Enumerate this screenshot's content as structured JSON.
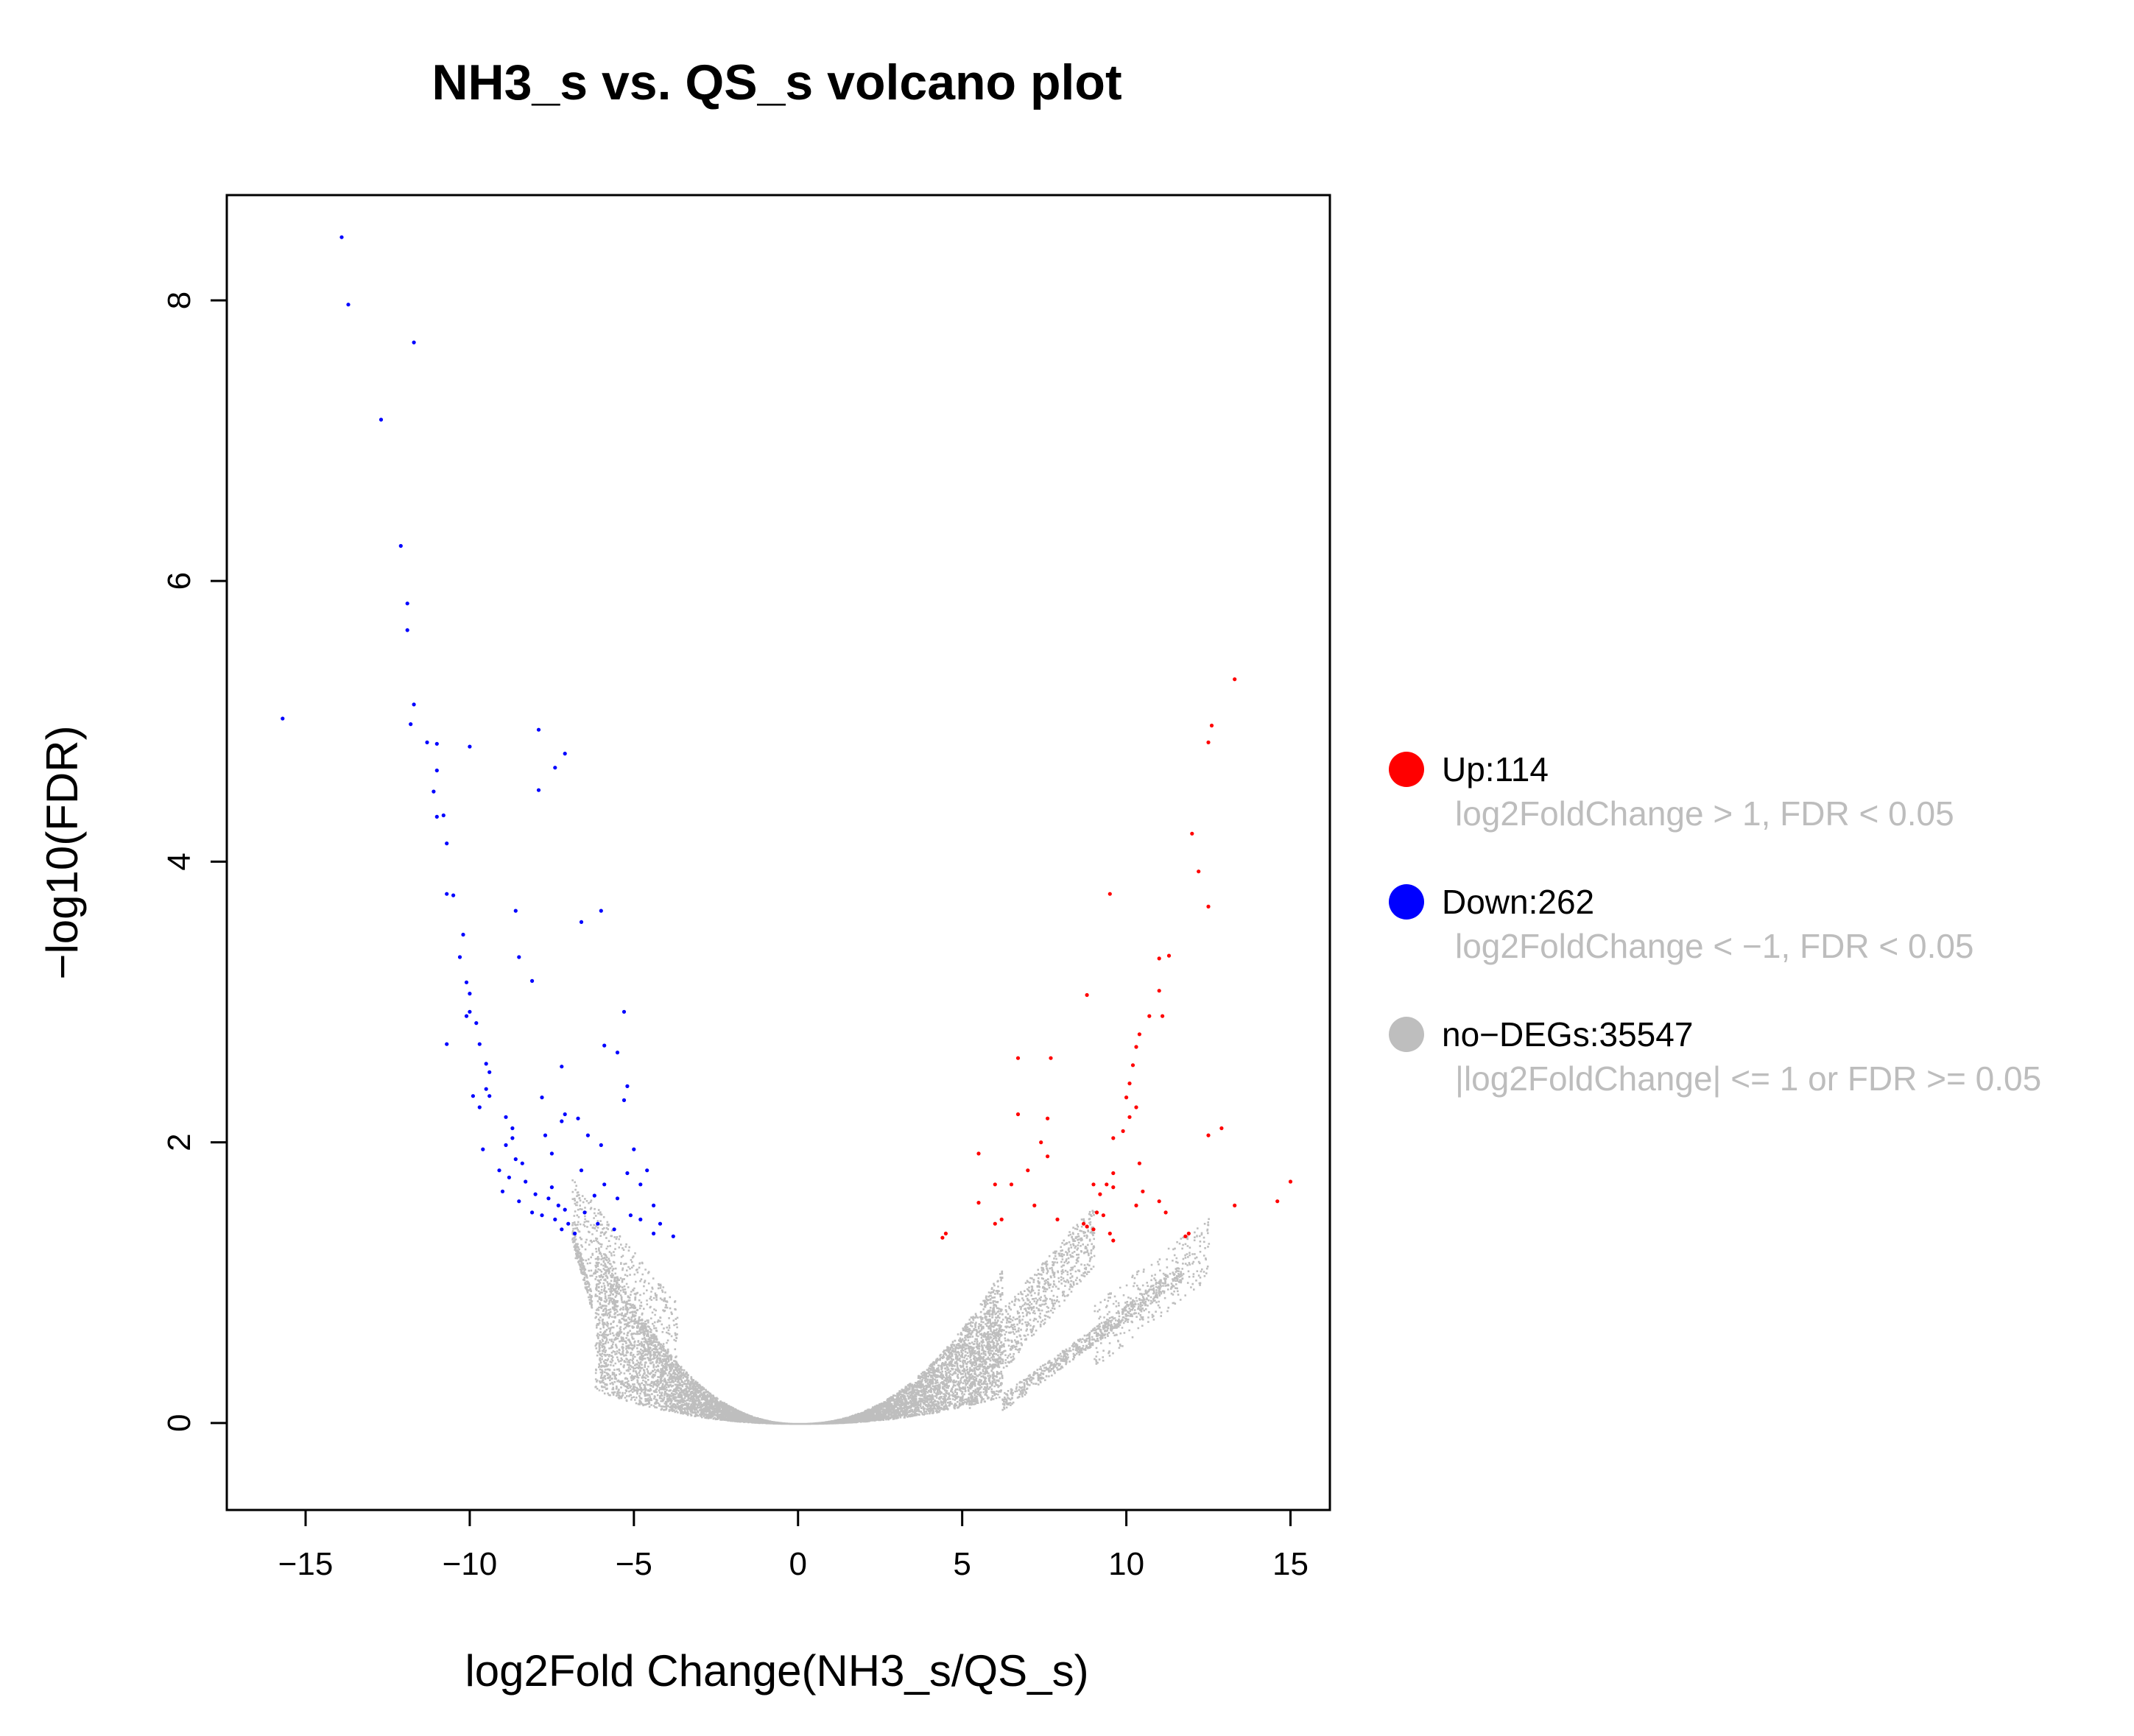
{
  "chart_data": {
    "type": "scatter",
    "title": "NH3_s vs. QS_s volcano plot",
    "xlabel": "log2Fold Change(NH3_s/QS_s)",
    "ylabel": "−log10(FDR)",
    "xlim": [
      -17.4,
      16.2
    ],
    "ylim": [
      -0.62,
      8.75
    ],
    "xticks": [
      -15,
      -10,
      -5,
      0,
      5,
      10,
      15
    ],
    "xtick_labels": [
      "−15",
      "−10",
      "−5",
      "0",
      "5",
      "10",
      "15"
    ],
    "yticks": [
      0,
      2,
      4,
      6,
      8
    ],
    "ytick_labels": [
      "0",
      "2",
      "4",
      "6",
      "8"
    ],
    "grid": false,
    "legend_position": "right",
    "colors": {
      "up": "#ff0000",
      "down": "#0000ff",
      "nodeg": "#bebebe"
    },
    "legend": [
      {
        "key": "up",
        "label": "Up:114",
        "desc": "log2FoldChange > 1, FDR < 0.05"
      },
      {
        "key": "down",
        "label": "Down:262",
        "desc": "log2FoldChange < −1, FDR < 0.05"
      },
      {
        "key": "nodeg",
        "label": "no−DEGs:35547",
        "desc": "|log2FoldChange| <= 1 or FDR >= 0.05"
      }
    ],
    "series": [
      {
        "key": "down",
        "points": [
          [
            -13.9,
            8.45
          ],
          [
            -13.7,
            7.97
          ],
          [
            -11.7,
            7.7
          ],
          [
            -12.7,
            7.15
          ],
          [
            -12.1,
            6.25
          ],
          [
            -11.9,
            5.84
          ],
          [
            -11.9,
            5.65
          ],
          [
            -11.7,
            5.12
          ],
          [
            -11.8,
            4.98
          ],
          [
            -11.3,
            4.85
          ],
          [
            -11.0,
            4.84
          ],
          [
            -15.7,
            5.02
          ],
          [
            -10.0,
            4.82
          ],
          [
            -7.9,
            4.94
          ],
          [
            -11.0,
            4.65
          ],
          [
            -11.1,
            4.5
          ],
          [
            -10.8,
            4.33
          ],
          [
            -11.0,
            4.32
          ],
          [
            -7.1,
            4.77
          ],
          [
            -7.4,
            4.67
          ],
          [
            -7.9,
            4.51
          ],
          [
            -10.7,
            4.13
          ],
          [
            -10.7,
            3.77
          ],
          [
            -10.5,
            3.76
          ],
          [
            -8.6,
            3.65
          ],
          [
            -6.0,
            3.65
          ],
          [
            -6.6,
            3.57
          ],
          [
            -10.2,
            3.48
          ],
          [
            -10.3,
            3.32
          ],
          [
            -8.5,
            3.32
          ],
          [
            -10.1,
            3.14
          ],
          [
            -8.1,
            3.15
          ],
          [
            -10.0,
            3.06
          ],
          [
            -10.0,
            2.93
          ],
          [
            -5.3,
            2.93
          ],
          [
            -10.1,
            2.9
          ],
          [
            -9.8,
            2.85
          ],
          [
            -9.7,
            2.7
          ],
          [
            -10.7,
            2.7
          ],
          [
            -5.9,
            2.69
          ],
          [
            -5.5,
            2.64
          ],
          [
            -9.5,
            2.56
          ],
          [
            -7.2,
            2.54
          ],
          [
            -9.4,
            2.5
          ],
          [
            -9.5,
            2.38
          ],
          [
            -5.2,
            2.4
          ],
          [
            -9.4,
            2.33
          ],
          [
            -9.9,
            2.33
          ],
          [
            -7.8,
            2.32
          ],
          [
            -9.7,
            2.25
          ],
          [
            -5.3,
            2.3
          ],
          [
            -7.1,
            2.2
          ],
          [
            -8.9,
            2.18
          ],
          [
            -7.2,
            2.15
          ],
          [
            -6.7,
            2.17
          ],
          [
            -8.7,
            2.1
          ],
          [
            -7.7,
            2.05
          ],
          [
            -8.7,
            2.03
          ],
          [
            -6.4,
            2.05
          ],
          [
            -8.9,
            1.98
          ],
          [
            -6.0,
            1.98
          ],
          [
            -9.6,
            1.95
          ],
          [
            -7.5,
            1.92
          ],
          [
            -5.0,
            1.95
          ],
          [
            -8.6,
            1.88
          ],
          [
            -8.4,
            1.85
          ],
          [
            -9.1,
            1.8
          ],
          [
            -4.6,
            1.8
          ],
          [
            -6.6,
            1.8
          ],
          [
            -5.2,
            1.78
          ],
          [
            -8.8,
            1.75
          ],
          [
            -8.3,
            1.72
          ],
          [
            -7.5,
            1.68
          ],
          [
            -5.9,
            1.7
          ],
          [
            -4.8,
            1.7
          ],
          [
            -9.0,
            1.65
          ],
          [
            -8.0,
            1.63
          ],
          [
            -7.6,
            1.6
          ],
          [
            -6.2,
            1.62
          ],
          [
            -5.5,
            1.6
          ],
          [
            -8.5,
            1.58
          ],
          [
            -7.3,
            1.55
          ],
          [
            -7.1,
            1.52
          ],
          [
            -8.1,
            1.5
          ],
          [
            -6.5,
            1.5
          ],
          [
            -4.4,
            1.55
          ],
          [
            -7.8,
            1.48
          ],
          [
            -7.4,
            1.45
          ],
          [
            -5.1,
            1.48
          ],
          [
            -7.0,
            1.42
          ],
          [
            -6.1,
            1.42
          ],
          [
            -4.8,
            1.45
          ],
          [
            -7.2,
            1.38
          ],
          [
            -6.8,
            1.35
          ],
          [
            -4.2,
            1.42
          ],
          [
            -5.6,
            1.38
          ],
          [
            -4.4,
            1.35
          ],
          [
            -3.8,
            1.33
          ]
        ]
      },
      {
        "key": "up",
        "points": [
          [
            13.3,
            5.3
          ],
          [
            12.6,
            4.97
          ],
          [
            12.5,
            4.85
          ],
          [
            12.0,
            4.2
          ],
          [
            12.2,
            3.93
          ],
          [
            9.5,
            3.77
          ],
          [
            12.5,
            3.68
          ],
          [
            11.3,
            3.33
          ],
          [
            11.0,
            3.31
          ],
          [
            11.0,
            3.08
          ],
          [
            8.8,
            3.05
          ],
          [
            10.7,
            2.9
          ],
          [
            11.1,
            2.9
          ],
          [
            10.4,
            2.77
          ],
          [
            10.3,
            2.68
          ],
          [
            6.7,
            2.6
          ],
          [
            7.7,
            2.6
          ],
          [
            10.2,
            2.55
          ],
          [
            10.1,
            2.42
          ],
          [
            10.0,
            2.32
          ],
          [
            10.3,
            2.25
          ],
          [
            6.7,
            2.2
          ],
          [
            10.1,
            2.18
          ],
          [
            7.6,
            2.17
          ],
          [
            12.9,
            2.1
          ],
          [
            9.9,
            2.08
          ],
          [
            12.5,
            2.05
          ],
          [
            9.6,
            2.03
          ],
          [
            7.4,
            2.0
          ],
          [
            7.6,
            1.9
          ],
          [
            5.5,
            1.92
          ],
          [
            10.4,
            1.85
          ],
          [
            7.0,
            1.8
          ],
          [
            9.6,
            1.78
          ],
          [
            15.0,
            1.72
          ],
          [
            6.0,
            1.7
          ],
          [
            6.5,
            1.7
          ],
          [
            9.0,
            1.7
          ],
          [
            9.4,
            1.7
          ],
          [
            9.6,
            1.68
          ],
          [
            10.5,
            1.65
          ],
          [
            9.2,
            1.63
          ],
          [
            14.6,
            1.58
          ],
          [
            11.0,
            1.58
          ],
          [
            5.5,
            1.57
          ],
          [
            13.3,
            1.55
          ],
          [
            7.2,
            1.55
          ],
          [
            10.3,
            1.55
          ],
          [
            11.2,
            1.5
          ],
          [
            9.1,
            1.5
          ],
          [
            9.3,
            1.48
          ],
          [
            6.2,
            1.45
          ],
          [
            7.9,
            1.45
          ],
          [
            8.7,
            1.42
          ],
          [
            6.0,
            1.42
          ],
          [
            8.8,
            1.4
          ],
          [
            9.0,
            1.38
          ],
          [
            9.5,
            1.35
          ],
          [
            11.9,
            1.35
          ],
          [
            4.5,
            1.35
          ],
          [
            4.4,
            1.32
          ],
          [
            11.8,
            1.33
          ],
          [
            9.6,
            1.3
          ]
        ]
      }
    ]
  }
}
